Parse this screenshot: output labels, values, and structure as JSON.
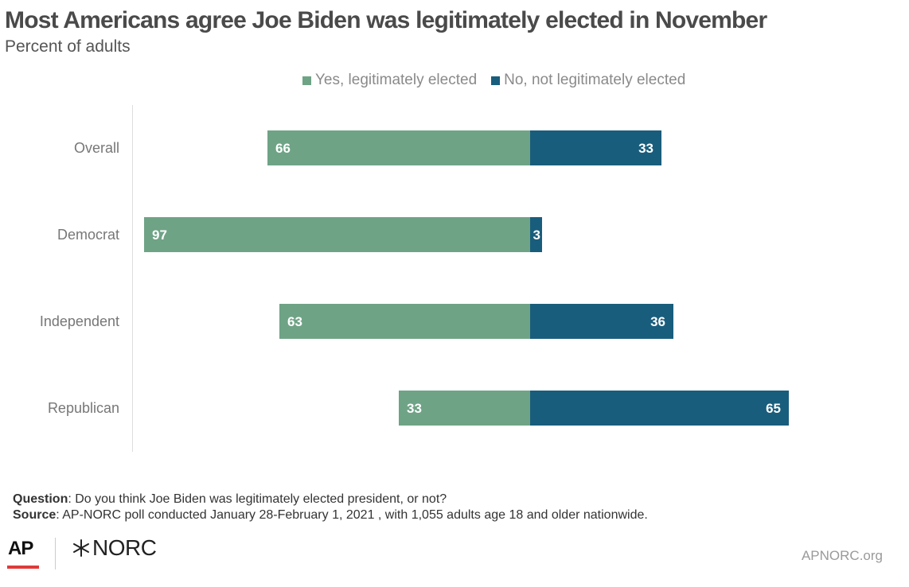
{
  "title": "Most Americans agree Joe Biden was legitimately elected in November",
  "subtitle": "Percent of adults",
  "colors": {
    "yes": "#6fa386",
    "no": "#195d7c",
    "axis": "#dddddd",
    "label": "#777777"
  },
  "chart_data": {
    "type": "bar",
    "orientation": "horizontal-diverging",
    "categories": [
      "Overall",
      "Democrat",
      "Independent",
      "Republican"
    ],
    "series": [
      {
        "name": "Yes, legitimately elected",
        "values": [
          66,
          97,
          63,
          33
        ],
        "direction": "left"
      },
      {
        "name": "No, not legitimately elected",
        "values": [
          33,
          3,
          36,
          65
        ],
        "direction": "right"
      }
    ],
    "legend": "top"
  },
  "notes": {
    "question_label": "Question",
    "question_text": ": Do you think Joe Biden was legitimately elected president, or not?",
    "source_label": "Source",
    "source_text": ": AP-NORC poll conducted January 28-February 1, 2021 , with 1,055 adults age 18 and older nationwide."
  },
  "logos": {
    "ap": "AP",
    "norc": "NORC",
    "norc_icon": "asterisk-star-icon"
  },
  "site": "APNORC.org"
}
